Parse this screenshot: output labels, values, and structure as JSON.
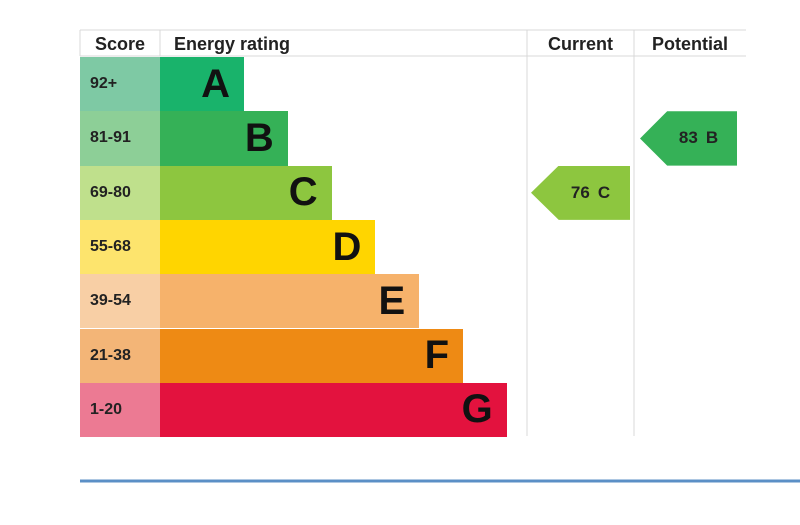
{
  "chart_data": {
    "type": "table",
    "headers": {
      "score": "Score",
      "rating": "Energy rating",
      "current": "Current",
      "potential": "Potential"
    },
    "bands": [
      {
        "score": "92+",
        "letter": "A",
        "color": "#19b36b",
        "score_bg": "#7ec9a4"
      },
      {
        "score": "81-91",
        "letter": "B",
        "color": "#35b157",
        "score_bg": "#8dcf97"
      },
      {
        "score": "69-80",
        "letter": "C",
        "color": "#8dc63f",
        "score_bg": "#bfe08c"
      },
      {
        "score": "55-68",
        "letter": "D",
        "color": "#ffd500",
        "score_bg": "#fde46d"
      },
      {
        "score": "39-54",
        "letter": "E",
        "color": "#f6b26b",
        "score_bg": "#f8cfa5"
      },
      {
        "score": "21-38",
        "letter": "F",
        "color": "#ee8a14",
        "score_bg": "#f3b577"
      },
      {
        "score": "1-20",
        "letter": "G",
        "color": "#e3123e",
        "score_bg": "#ec7a93"
      }
    ],
    "current": {
      "value": "76",
      "letter": "C",
      "color": "#8dc63f"
    },
    "potential": {
      "value": "83",
      "letter": "B",
      "color": "#35b157"
    }
  }
}
